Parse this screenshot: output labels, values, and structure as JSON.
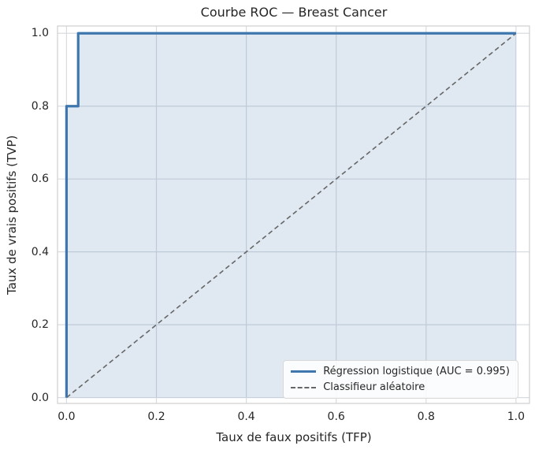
{
  "figure": {
    "background": "#ffffff"
  },
  "chart_data": {
    "type": "line",
    "title": "Courbe ROC — Breast Cancer",
    "xlabel": "Taux de faux positifs (TFP)",
    "ylabel": "Taux de vrais positifs (TVP)",
    "xlim": [
      -0.02,
      1.03
    ],
    "ylim": [
      -0.016,
      1.02
    ],
    "xticks": [
      0.0,
      0.2,
      0.4,
      0.6,
      0.8,
      1.0
    ],
    "yticks": [
      0.0,
      0.2,
      0.4,
      0.6,
      0.8,
      1.0
    ],
    "xtick_labels": [
      "0.0",
      "0.2",
      "0.4",
      "0.6",
      "0.8",
      "1.0"
    ],
    "ytick_labels": [
      "0.0",
      "0.2",
      "0.4",
      "0.6",
      "0.8",
      "1.0"
    ],
    "grid": true,
    "legend_position": "lower right",
    "auc": 0.995,
    "series": [
      {
        "name": "Régression logistique (AUC = 0.995)",
        "style": "solid",
        "color": "#3e77ae",
        "width": 3.2,
        "fill": true,
        "fill_opacity": 0.16,
        "points": [
          [
            0,
            0
          ],
          [
            0,
            0.8
          ],
          [
            0.026,
            0.8
          ],
          [
            0.026,
            1.0
          ],
          [
            1.0,
            1.0
          ]
        ]
      },
      {
        "name": "Classifieur aléatoire",
        "style": "dashed",
        "color": "#666666",
        "width": 1.6,
        "fill": false,
        "points": [
          [
            0,
            0
          ],
          [
            1.0,
            1.0
          ]
        ]
      }
    ],
    "colors": {
      "grid": "#d8dbe0",
      "spine": "#cfcfcf",
      "text": "#262626",
      "legend_border": "#d9d9d9"
    }
  }
}
